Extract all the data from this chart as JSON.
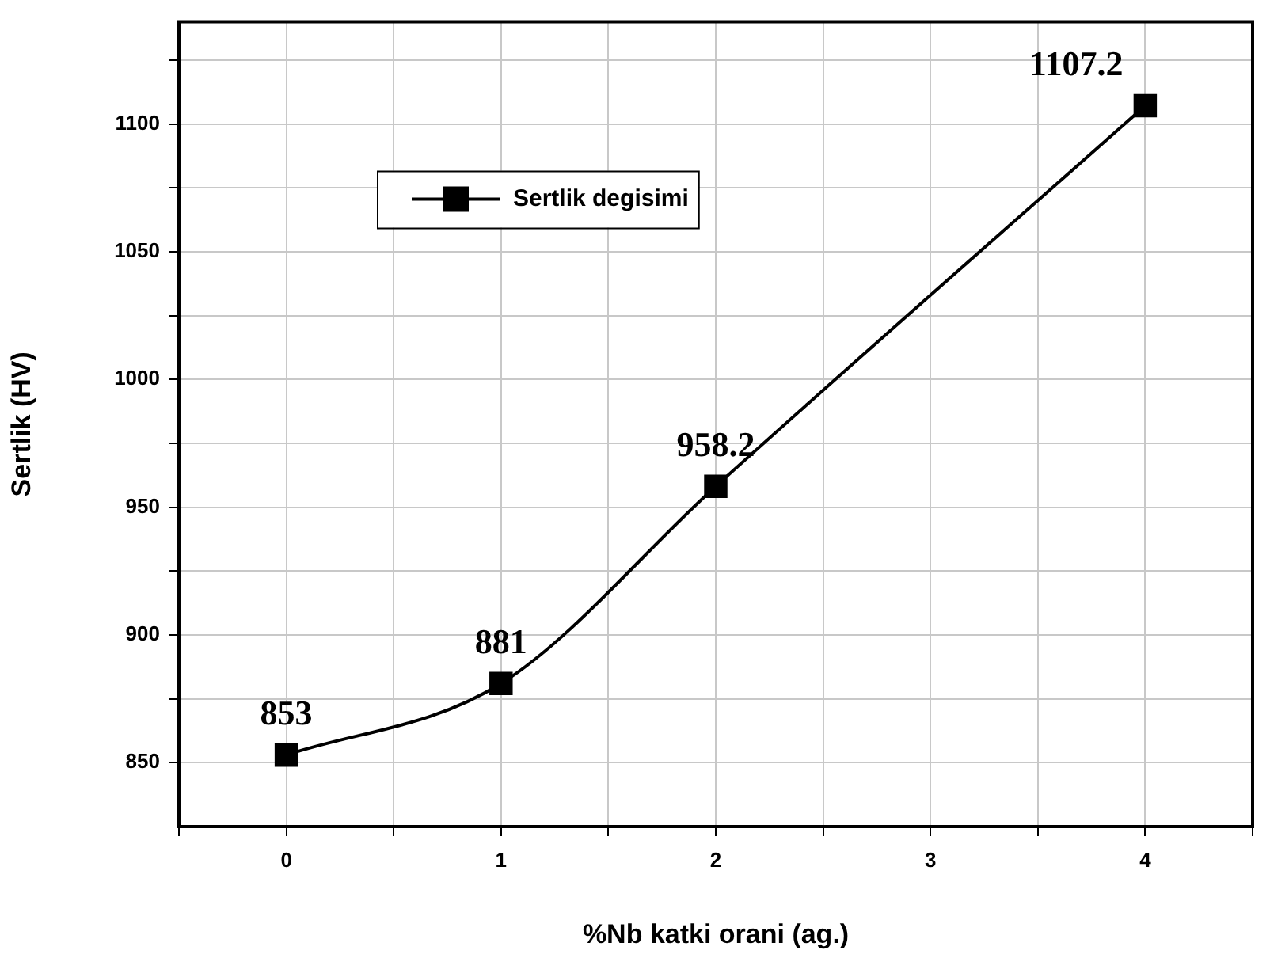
{
  "chart_data": {
    "type": "line",
    "xlabel": "%Nb katki orani (ag.)",
    "ylabel": "Sertlik (HV)",
    "x": [
      0,
      1,
      2,
      4
    ],
    "series": [
      {
        "name": "Sertlik degisimi",
        "color": "#000000",
        "values": [
          853,
          881,
          958.2,
          1107.2
        ]
      }
    ],
    "xlim": [
      -0.5,
      4.5
    ],
    "xticks": [
      {
        "value": -0.5,
        "label": null
      },
      0,
      {
        "value": 0.5,
        "label": null
      },
      1,
      {
        "value": 1.5,
        "label": null
      },
      2,
      {
        "value": 2.5,
        "label": null
      },
      3,
      {
        "value": 3.5,
        "label": null
      },
      4,
      {
        "value": 4.5,
        "label": null
      }
    ],
    "ylim": [
      825,
      1140
    ],
    "yticks": [
      850,
      {
        "value": 875,
        "label": null
      },
      900,
      {
        "value": 925,
        "label": null
      },
      950,
      {
        "value": 975,
        "label": null
      },
      1000,
      {
        "value": 1025,
        "label": null
      },
      1050,
      {
        "value": 1075,
        "label": null
      },
      1100,
      {
        "value": 1125,
        "label": null
      }
    ],
    "grid": true,
    "legend": "top left",
    "marker": "square",
    "line_style": "solid",
    "data_labels": true
  }
}
